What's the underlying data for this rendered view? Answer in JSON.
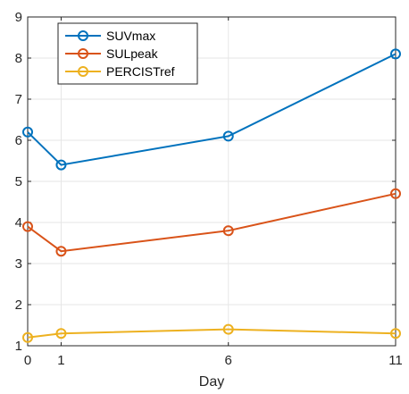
{
  "chart_data": {
    "type": "line",
    "title": "",
    "xlabel": "Day",
    "ylabel": "",
    "x": [
      0,
      1,
      6,
      11
    ],
    "xticks": [
      0,
      1,
      6,
      11
    ],
    "xlim": [
      0,
      11
    ],
    "ylim": [
      1,
      9
    ],
    "yticks": [
      1,
      2,
      3,
      4,
      5,
      6,
      7,
      8,
      9
    ],
    "grid": true,
    "legend_position": "top-left",
    "series": [
      {
        "name": "SUVmax",
        "color": "#0072BD",
        "marker": "circle",
        "values": [
          6.2,
          5.4,
          6.1,
          8.1
        ]
      },
      {
        "name": "SULpeak",
        "color": "#D95319",
        "marker": "circle",
        "values": [
          3.9,
          3.3,
          3.8,
          4.7
        ]
      },
      {
        "name": "PERCISTref",
        "color": "#EDB120",
        "marker": "circle",
        "values": [
          1.2,
          1.3,
          1.4,
          1.3
        ]
      }
    ]
  }
}
